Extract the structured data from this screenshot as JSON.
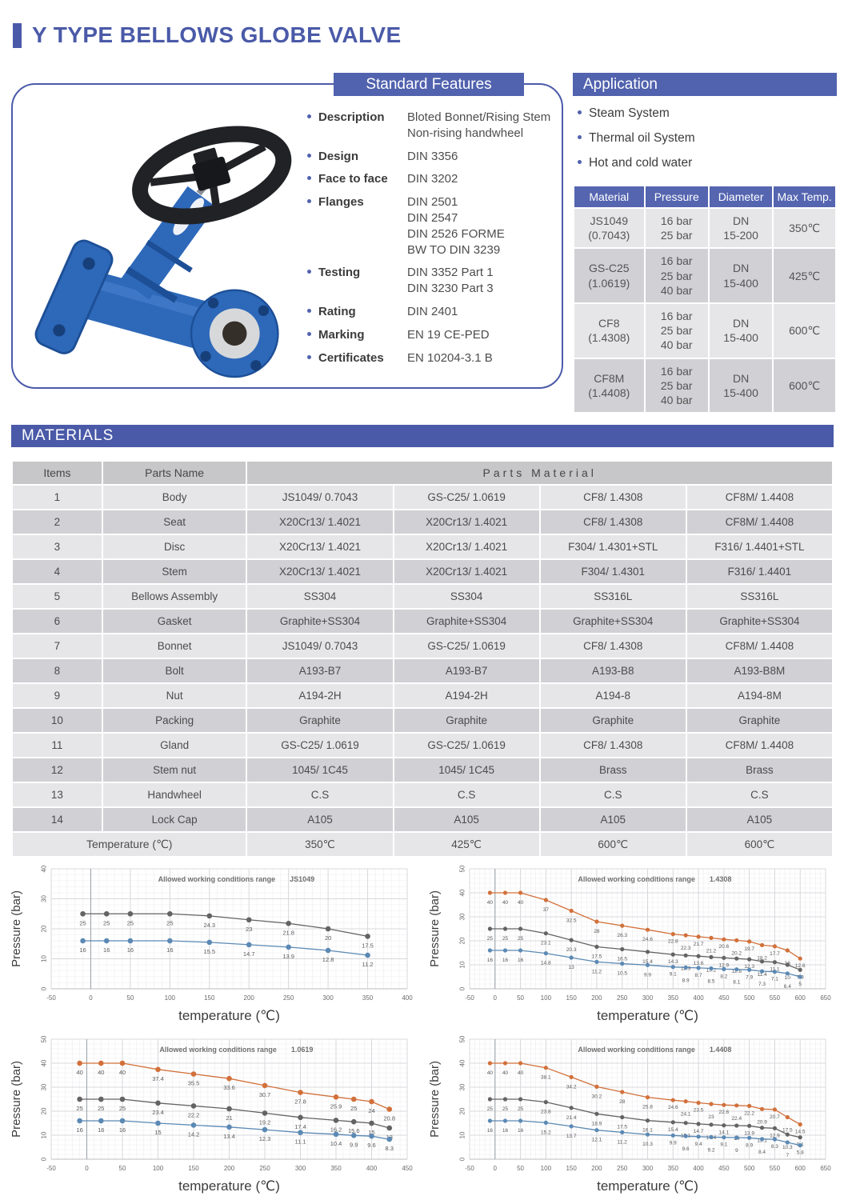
{
  "page_title": "Y TYPE BELLOWS GLOBE VALVE",
  "colors": {
    "accent_blue": "#4a5aa8",
    "header_bar_blue": "#5162ae",
    "table_header_blue": "#5565b0",
    "row_light": "#e6e6e9",
    "row_dark": "#d0d0d5",
    "series_orange": "#d2703a",
    "series_gray": "#636363",
    "series_blue": "#5b89b4"
  },
  "standard_features": {
    "header": "Standard Features",
    "items": [
      {
        "label": "Description",
        "value": "Bloted Bonnet/Rising Stem\nNon-rising handwheel"
      },
      {
        "label": "Design",
        "value": "DIN 3356"
      },
      {
        "label": "Face to face",
        "value": "DIN 3202"
      },
      {
        "label": "Flanges",
        "value": "DIN 2501\nDIN 2547\nDIN 2526 FORME\nBW TO DIN 3239"
      },
      {
        "label": "Testing",
        "value": "DIN 3352 Part 1\nDIN 3230 Part 3"
      },
      {
        "label": "Rating",
        "value": "DIN 2401"
      },
      {
        "label": "Marking",
        "value": "EN 19 CE-PED"
      },
      {
        "label": "Certificates",
        "value": "EN 10204-3.1 B"
      }
    ]
  },
  "application": {
    "header": "Application",
    "bullets": [
      "Steam System",
      "Thermal oil System",
      "Hot and cold water"
    ],
    "table": {
      "headers": [
        "Material",
        "Pressure",
        "Diameter",
        "Max Temp."
      ],
      "rows": [
        [
          "JS1049\n(0.7043)",
          "16 bar\n25 bar",
          "DN\n15-200",
          "350℃"
        ],
        [
          "GS-C25\n(1.0619)",
          "16 bar\n25 bar\n40 bar",
          "DN\n15-400",
          "425℃"
        ],
        [
          "CF8\n(1.4308)",
          "16 bar\n25 bar\n40 bar",
          "DN\n15-400",
          "600℃"
        ],
        [
          "CF8M\n(1.4408)",
          "16 bar\n25 bar\n40 bar",
          "DN\n15-400",
          "600℃"
        ]
      ]
    }
  },
  "materials": {
    "header": "MATERIALS",
    "columns": {
      "items": "Items",
      "parts_name": "Parts Name",
      "parts_material": "Parts Material"
    },
    "rows": [
      [
        "1",
        "Body",
        "JS1049/ 0.7043",
        "GS-C25/ 1.0619",
        "CF8/ 1.4308",
        "CF8M/ 1.4408"
      ],
      [
        "2",
        "Seat",
        "X20Cr13/ 1.4021",
        "X20Cr13/ 1.4021",
        "CF8/ 1.4308",
        "CF8M/ 1.4408"
      ],
      [
        "3",
        "Disc",
        "X20Cr13/ 1.4021",
        "X20Cr13/ 1.4021",
        "F304/ 1.4301+STL",
        "F316/ 1.4401+STL"
      ],
      [
        "4",
        "Stem",
        "X20Cr13/ 1.4021",
        "X20Cr13/ 1.4021",
        "F304/ 1.4301",
        "F316/ 1.4401"
      ],
      [
        "5",
        "Bellows Assembly",
        "SS304",
        "SS304",
        "SS316L",
        "SS316L"
      ],
      [
        "6",
        "Gasket",
        "Graphite+SS304",
        "Graphite+SS304",
        "Graphite+SS304",
        "Graphite+SS304"
      ],
      [
        "7",
        "Bonnet",
        "JS1049/ 0.7043",
        "GS-C25/ 1.0619",
        "CF8/ 1.4308",
        "CF8M/ 1.4408"
      ],
      [
        "8",
        "Bolt",
        "A193-B7",
        "A193-B7",
        "A193-B8",
        "A193-B8M"
      ],
      [
        "9",
        "Nut",
        "A194-2H",
        "A194-2H",
        "A194-8",
        "A194-8M"
      ],
      [
        "10",
        "Packing",
        "Graphite",
        "Graphite",
        "Graphite",
        "Graphite"
      ],
      [
        "11",
        "Gland",
        "GS-C25/ 1.0619",
        "GS-C25/ 1.0619",
        "CF8/ 1.4308",
        "CF8M/ 1.4408"
      ],
      [
        "12",
        "Stem nut",
        "1045/ 1C45",
        "1045/ 1C45",
        "Brass",
        "Brass"
      ],
      [
        "13",
        "Handwheel",
        "C.S",
        "C.S",
        "C.S",
        "C.S"
      ],
      [
        "14",
        "Lock Cap",
        "A105",
        "A105",
        "A105",
        "A105"
      ]
    ],
    "temperature_row": [
      "Temperature (℃)",
      "350℃",
      "425℃",
      "600℃",
      "600℃"
    ]
  },
  "chart_data": [
    {
      "type": "line",
      "title": "Allowed working conditions range",
      "code": "JS1049",
      "xlabel": "temperature (℃)",
      "ylabel": "Pressure (bar)",
      "xlim": [
        -50,
        400
      ],
      "ylim": [
        0,
        40
      ],
      "xtick_step": 50,
      "ytick_step": 10,
      "grid": true,
      "legend": "none",
      "x": [
        -10,
        20,
        50,
        100,
        150,
        200,
        250,
        300,
        350
      ],
      "series": [
        {
          "name": "25 bar",
          "color": "#636363",
          "values": [
            25,
            25,
            25,
            25,
            24.3,
            23,
            21.8,
            20,
            17.5
          ]
        },
        {
          "name": "16 bar",
          "color": "#5b89b4",
          "values": [
            16,
            16,
            16,
            16,
            15.5,
            14.7,
            13.9,
            12.8,
            11.2
          ]
        }
      ]
    },
    {
      "type": "line",
      "title": "Allowed working conditions range",
      "code": "1.4308",
      "xlabel": "temperature (℃)",
      "ylabel": "Pressure (bar)",
      "xlim": [
        -50,
        650
      ],
      "ylim": [
        0,
        50
      ],
      "xtick_step": 50,
      "ytick_step": 10,
      "grid": true,
      "legend": "none",
      "x": [
        -10,
        20,
        50,
        100,
        150,
        200,
        250,
        300,
        350,
        375,
        400,
        425,
        450,
        475,
        500,
        525,
        550,
        575,
        600
      ],
      "series": [
        {
          "name": "40 bar",
          "color": "#d2703a",
          "values": [
            40,
            40,
            40,
            37,
            32.5,
            28,
            26.3,
            24.6,
            22.8,
            22.3,
            21.7,
            21.2,
            20.6,
            20.2,
            19.7,
            18.2,
            17.7,
            16,
            12.6
          ]
        },
        {
          "name": "25 bar",
          "color": "#636363",
          "values": [
            25,
            25,
            25,
            23.1,
            20.3,
            17.5,
            16.5,
            15.4,
            14.3,
            13.9,
            13.6,
            13.2,
            12.9,
            12.6,
            12.3,
            11.4,
            11.1,
            10,
            7.9
          ]
        },
        {
          "name": "16 bar",
          "color": "#5b89b4",
          "values": [
            16,
            16,
            16,
            14.8,
            13,
            11.2,
            10.5,
            9.9,
            9.1,
            8.9,
            8.7,
            8.5,
            8.2,
            8.1,
            7.9,
            7.3,
            7.1,
            6.4,
            5
          ]
        }
      ]
    },
    {
      "type": "line",
      "title": "Allowed working conditions range",
      "code": "1.0619",
      "xlabel": "temperature (℃)",
      "ylabel": "Pressure (bar)",
      "xlim": [
        -50,
        450
      ],
      "ylim": [
        0,
        50
      ],
      "xtick_step": 50,
      "ytick_step": 10,
      "grid": true,
      "legend": "none",
      "x": [
        -10,
        20,
        50,
        100,
        150,
        200,
        250,
        300,
        350,
        375,
        400,
        425
      ],
      "series": [
        {
          "name": "40 bar",
          "color": "#d2703a",
          "values": [
            40,
            40,
            40,
            37.4,
            35.5,
            33.6,
            30.7,
            27.8,
            25.9,
            25,
            24,
            20.8
          ]
        },
        {
          "name": "25 bar",
          "color": "#636363",
          "values": [
            25,
            25,
            25,
            23.4,
            22.2,
            21,
            19.2,
            17.4,
            16.2,
            15.6,
            15,
            13
          ]
        },
        {
          "name": "16 bar",
          "color": "#5b89b4",
          "values": [
            16,
            16,
            16,
            15,
            14.2,
            13.4,
            12.3,
            11.1,
            10.4,
            9.9,
            9.6,
            8.3
          ]
        }
      ]
    },
    {
      "type": "line",
      "title": "Allowed working conditions range",
      "code": "1.4408",
      "xlabel": "temperature (℃)",
      "ylabel": "Pressure (bar)",
      "xlim": [
        -50,
        650
      ],
      "ylim": [
        0,
        50
      ],
      "xtick_step": 50,
      "ytick_step": 10,
      "grid": true,
      "legend": "none",
      "x": [
        -10,
        20,
        50,
        100,
        150,
        200,
        250,
        300,
        350,
        375,
        400,
        425,
        450,
        475,
        500,
        525,
        550,
        575,
        600
      ],
      "series": [
        {
          "name": "40 bar",
          "color": "#d2703a",
          "values": [
            40,
            40,
            40,
            38.1,
            34.2,
            30.2,
            28,
            25.8,
            24.6,
            24.1,
            23.5,
            23,
            22.6,
            22.4,
            22.2,
            20.9,
            20.7,
            17.5,
            14.5
          ]
        },
        {
          "name": "25 bar",
          "color": "#636363",
          "values": [
            25,
            25,
            25,
            23.8,
            21.4,
            18.9,
            17.5,
            16.1,
            15.4,
            15.1,
            14.7,
            14.4,
            14.1,
            14,
            13.9,
            13.1,
            12.9,
            10.3,
            9.1
          ]
        },
        {
          "name": "16 bar",
          "color": "#5b89b4",
          "values": [
            16,
            16,
            16,
            15.2,
            13.7,
            12.1,
            11.2,
            10.3,
            9.9,
            9.6,
            9.4,
            9.2,
            9.1,
            9,
            8.9,
            8.4,
            8.3,
            7,
            5.8
          ]
        }
      ]
    }
  ]
}
